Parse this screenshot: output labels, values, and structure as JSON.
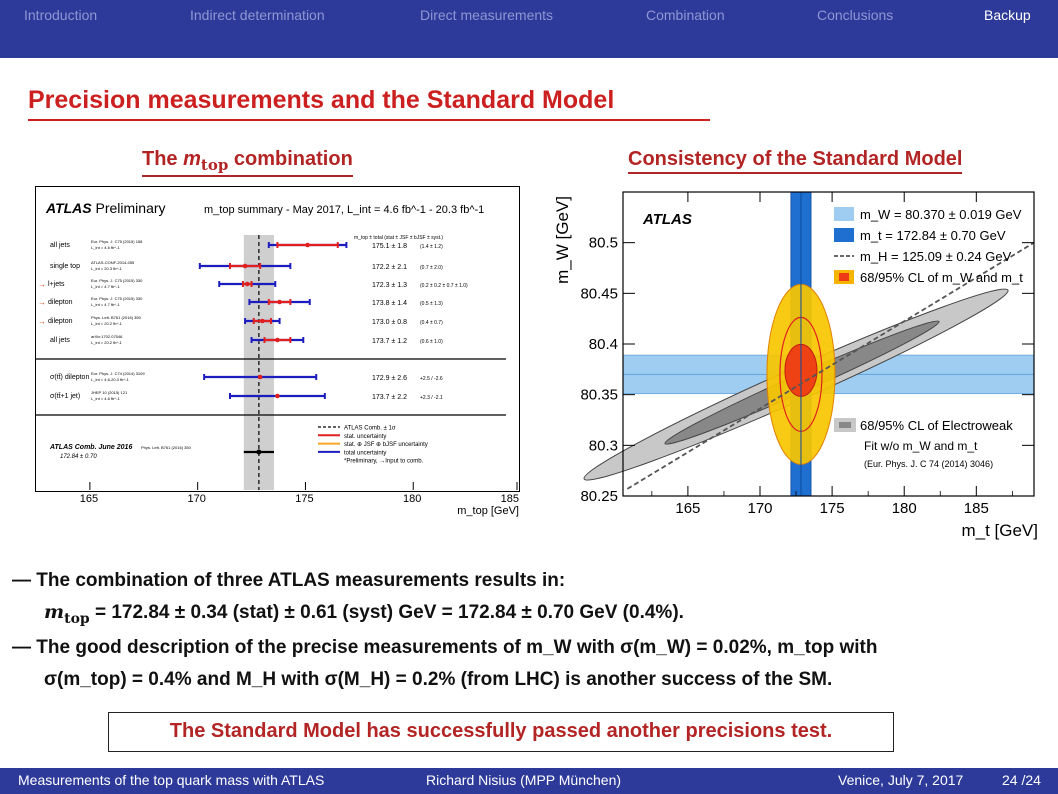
{
  "nav": {
    "items": [
      "Introduction",
      "Indirect determination",
      "Direct measurements",
      "Combination",
      "Conclusions",
      "Backup"
    ],
    "active": "Backup"
  },
  "slide": {
    "title": "Precision measurements and the Standard Model",
    "left_heading_pre": "The ",
    "left_heading_m": "m",
    "left_heading_sub": "top",
    "left_heading_post": " combination",
    "right_heading": "Consistency of the Standard Model"
  },
  "chart_data": [
    {
      "type": "scatter",
      "title": "ATLAS Preliminary",
      "title_bold": "ATLAS",
      "title_rest": " Preliminary",
      "subtitle": "m_top summary - May 2017, L_int = 4.6 fb^-1 - 20.3 fb^-1",
      "header_cols": "m_top ± total (stat ± JSF ± bJSF ± syst.)",
      "xlabel": "m_top [GeV]",
      "xlim": [
        162.5,
        185
      ],
      "xticks": [
        165,
        170,
        175,
        180,
        185
      ],
      "combination": {
        "value": 172.84,
        "unc": 0.7
      },
      "rows": [
        {
          "label": "all jets",
          "ref": "Eur. Phys. J. C75 (2015) 158",
          "lumi": "L_int = 4.6 fb^-1",
          "value": 175.1,
          "total": 1.8,
          "detail": "(1.4  ±  1.2)",
          "stat": 1.4,
          "group": 1
        },
        {
          "label": "single top",
          "ref": "ATLAS-CONF-2014-055",
          "lumi": "L_int = 20.3 fb^-1",
          "value": 172.2,
          "total": 2.1,
          "detail": "(0.7  ±  2.0)",
          "stat": 0.7,
          "group": 1
        },
        {
          "label": "l+jets",
          "ref": "Eur. Phys. J. C75 (2015) 330",
          "lumi": "L_int = 4.7 fb^-1",
          "value": 172.3,
          "total": 1.3,
          "detail": "(0.2 ± 0.2 ± 0.7 ± 1.0)",
          "stat": 0.2,
          "group": 1,
          "input": true
        },
        {
          "label": "dilepton",
          "ref": "Eur. Phys. J. C75 (2015) 330",
          "lumi": "L_int = 4.7 fb^-1",
          "value": 173.8,
          "total": 1.4,
          "detail": "(0.5  ±  1.3)",
          "stat": 0.5,
          "group": 1,
          "input": true
        },
        {
          "label": "dilepton",
          "ref": "Phys. Lett. B761 (2016) 350",
          "lumi": "L_int = 20.2 fb^-1",
          "value": 173.0,
          "total": 0.8,
          "detail": "(0.4  ±  0.7)",
          "stat": 0.4,
          "group": 1,
          "input": true
        },
        {
          "label": "all jets",
          "ref": "arXiv:1702.07546",
          "lumi": "L_int = 20.2 fb^-1",
          "value": 173.7,
          "total": 1.2,
          "detail": "(0.6  ±  1.0)",
          "stat": 0.6,
          "group": 1
        },
        {
          "label": "σ(tt̄) dilepton",
          "ref": "Eur. Phys. J. C74 (2014) 3109",
          "lumi": "L_int = 4.6-20.3 fb^-1",
          "value": 172.9,
          "total": 2.6,
          "detail": "+2.5 / -2.6",
          "stat": 0,
          "group": 2
        },
        {
          "label": "σ(tt̄+1 jet)",
          "ref": "JHEP 10 (2015) 121",
          "lumi": "L_int = 4.6 fb^-1",
          "value": 173.7,
          "total": 2.2,
          "detail": "+2.3 / -2.1",
          "stat": 0,
          "group": 2
        }
      ],
      "legend": [
        "ATLAS Comb. ± 1σ",
        "stat. uncertainty",
        "stat. ⊕ JSF ⊕ bJSF uncertainty",
        "total uncertainty",
        "*Preliminary, →Input to comb."
      ],
      "comb_label": "ATLAS Comb. June 2016",
      "comb_ref": "Phys. Lett. B761 (2016) 350",
      "comb_value_text": "172.84 ± 0.70"
    },
    {
      "type": "scatter",
      "title": "ATLAS",
      "xlabel": "m_t [GeV]",
      "ylabel": "m_W [GeV]",
      "xlim": [
        160.5,
        189
      ],
      "ylim": [
        80.25,
        80.55
      ],
      "xticks": [
        165,
        170,
        175,
        180,
        185
      ],
      "yticks": [
        80.25,
        80.3,
        80.35,
        80.4,
        80.45,
        80.5
      ],
      "ytick_labels": [
        "80.25",
        "80.3",
        "80.35",
        "80.4",
        "80.45",
        "80.5"
      ],
      "mW": {
        "value": 80.37,
        "unc": 0.019
      },
      "mt": {
        "value": 172.84,
        "unc": 0.7
      },
      "legend": [
        {
          "label": "m_W = 80.370 ± 0.019 GeV",
          "color": "#9fcdf2"
        },
        {
          "label": "m_t = 172.84 ± 0.70 GeV",
          "color": "#1f6fd0"
        },
        {
          "label": "m_H = 125.09 ± 0.24 GeV",
          "color": "#555555"
        },
        {
          "label": "68/95% CL of m_W and m_t",
          "color": "#f5b400"
        }
      ],
      "ew_label": "68/95% CL of Electroweak",
      "ew_label2": "Fit w/o m_W and m_t",
      "ew_ref": "(Eur. Phys. J. C 74 (2014) 3046)",
      "colors": {
        "mW_band": "#9fcdf2",
        "mt_band": "#1f6fd0",
        "cl95": "#f7c500",
        "cl68": "#ee3b16",
        "ew95": "#c8c8c8",
        "ew68": "#888888"
      }
    }
  ],
  "bullets": {
    "b1": "— The combination of three ATLAS measurements results in:",
    "eq_m": "m",
    "eq_sub": "top",
    "eq_rest": " = 172.84 ± 0.34 (stat) ± 0.61 (syst) GeV = 172.84 ± 0.70 GeV (0.4%).",
    "b2": "— The good description of the precise measurements of m_W with σ(m_W) = 0.02%, m_top with",
    "b2b": "σ(m_top) = 0.4% and M_H with σ(M_H) = 0.2% (from LHC) is another success of the SM."
  },
  "callout": "The Standard Model has successfully passed another precisions test.",
  "footer": {
    "left": "Measurements of the top quark mass with ATLAS",
    "center": "Richard Nisius  (MPP München)",
    "right": "Venice, July 7, 2017",
    "page": "24 /24"
  }
}
